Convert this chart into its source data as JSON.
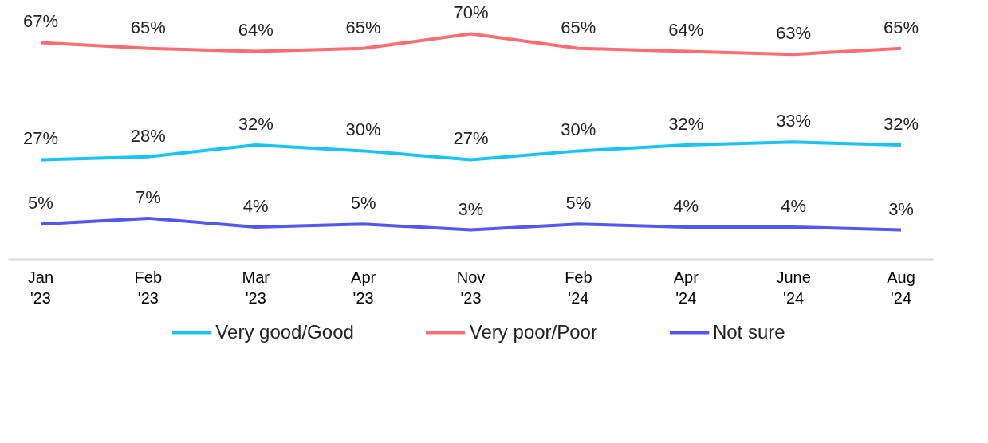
{
  "chart_data": {
    "type": "line",
    "categories": [
      "Jan\n'23",
      "Feb\n'23",
      "Mar\n'23",
      "Apr\n'23",
      "Nov\n'23",
      "Feb\n'24",
      "Apr\n'24",
      "June\n'24",
      "Aug\n'24"
    ],
    "series": [
      {
        "name": "Very good/Good",
        "color": "#18c3f5",
        "values": [
          27,
          28,
          32,
          30,
          27,
          30,
          32,
          33,
          32
        ],
        "value_labels": [
          "27%",
          "28%",
          "32%",
          "30%",
          "27%",
          "30%",
          "32%",
          "33%",
          "32%"
        ]
      },
      {
        "name": "Very poor/Poor",
        "color": "#ff6b70",
        "values": [
          67,
          65,
          64,
          65,
          70,
          65,
          64,
          63,
          65
        ],
        "value_labels": [
          "67%",
          "65%",
          "64%",
          "65%",
          "70%",
          "65%",
          "64%",
          "63%",
          "65%"
        ]
      },
      {
        "name": "Not sure",
        "color": "#5058f0",
        "values": [
          5,
          7,
          4,
          5,
          3,
          5,
          4,
          4,
          3
        ],
        "value_labels": [
          "5%",
          "7%",
          "4%",
          "5%",
          "3%",
          "5%",
          "4%",
          "4%",
          "3%"
        ]
      }
    ],
    "tick_labels": "x",
    "legend": "bottom"
  }
}
